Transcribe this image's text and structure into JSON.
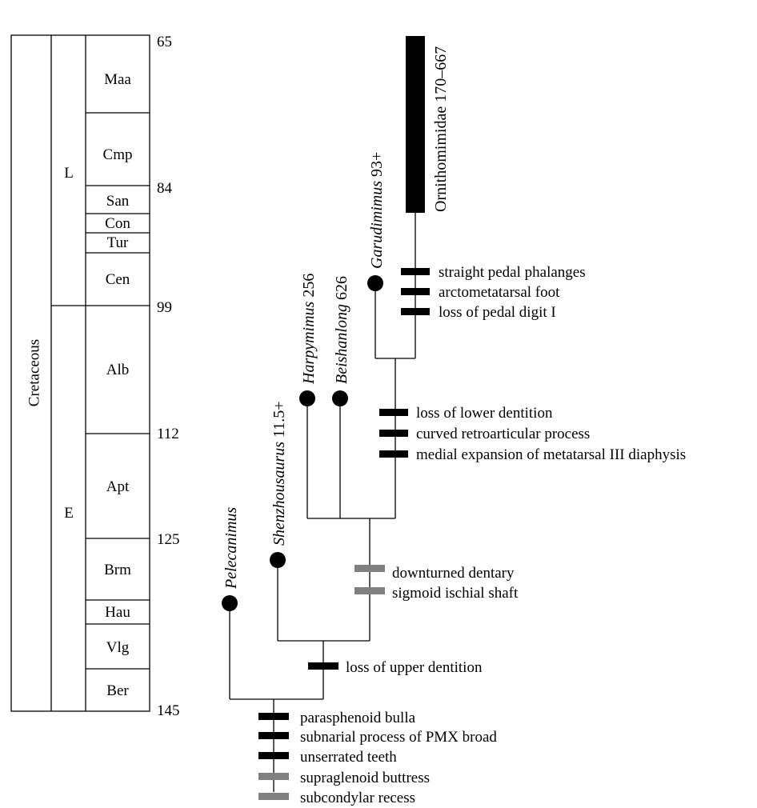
{
  "colors": {
    "black": "#000000",
    "homoplasy_gray": "#808080",
    "background": "#ffffff"
  },
  "timescale": {
    "period": "Cretaceous",
    "epochs": [
      "L",
      "E"
    ],
    "stages": [
      "Maa",
      "Cmp",
      "San",
      "Con",
      "Tur",
      "Cen",
      "Alb",
      "Apt",
      "Brm",
      "Hau",
      "Vlg",
      "Ber"
    ],
    "ages": [
      "65",
      "84",
      "99",
      "112",
      "125",
      "145"
    ]
  },
  "taxa": [
    {
      "name": "Pelecanimus",
      "suffix": ""
    },
    {
      "name": "Shenzhousaurus",
      "suffix": " 11.5+"
    },
    {
      "name": "Harpymimus",
      "suffix": " 256"
    },
    {
      "name": "Beishanlong",
      "suffix": " 626"
    },
    {
      "name": "Garudimimus",
      "suffix": " 93+"
    },
    {
      "name": "Ornithomimidae 170–667",
      "suffix": ""
    }
  ],
  "characters": {
    "ornithomimidae": [
      "straight pedal phalanges",
      "arctometatarsal foot",
      "loss of pedal digit I"
    ],
    "upper_clade": [
      "loss of lower dentition",
      "curved retroarticular process",
      "medial expansion of metatarsal III diaphysis"
    ],
    "mid_clade": [
      "downturned dentary",
      "sigmoid ischial shaft"
    ],
    "shenzhou_clade": [
      "loss of upper dentition"
    ],
    "root": [
      "parasphenoid bulla",
      "subnarial process of PMX broad",
      "unserrated teeth",
      "supraglenoid buttress",
      "subcondylar recess"
    ]
  }
}
